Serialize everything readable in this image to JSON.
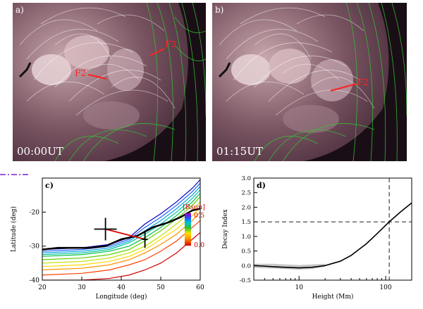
{
  "panel_a": {
    "letter": "a)",
    "time": "00:00UT",
    "filament_labels": [
      "F2",
      "F3"
    ]
  },
  "panel_b": {
    "letter": "b)",
    "time": "01:15UT",
    "filament_labels": [
      "F2"
    ]
  },
  "chart_data": [
    {
      "panel": "c)",
      "type": "line",
      "xlabel": "Longitude (deg)",
      "ylabel": "Latitude (deg)",
      "xlim": [
        20,
        60
      ],
      "ylim": [
        -40,
        -10
      ],
      "xticks": [
        20,
        30,
        40,
        50,
        60
      ],
      "yticks": [
        -40,
        -30,
        -20
      ],
      "colorbar": {
        "title": "[Rsun]",
        "max_label": "0.5",
        "min_label": "0.0"
      },
      "series": [
        {
          "color": "#d00000",
          "x": [
            20,
            30,
            37,
            42,
            46,
            50,
            54,
            58,
            60
          ],
          "y": [
            -40,
            -40,
            -39.5,
            -38.5,
            -37,
            -35,
            -32,
            -28,
            -26
          ]
        },
        {
          "color": "#ff4000",
          "x": [
            20,
            30,
            37,
            42,
            46,
            50,
            54,
            58,
            60
          ],
          "y": [
            -38.5,
            -38,
            -37,
            -35.5,
            -34,
            -31.5,
            -28.5,
            -24.5,
            -22.5
          ]
        },
        {
          "color": "#ff9000",
          "x": [
            20,
            30,
            37,
            42,
            46,
            50,
            54,
            58,
            60
          ],
          "y": [
            -37,
            -36.5,
            -35.5,
            -34,
            -32,
            -29.5,
            -26.5,
            -22.5,
            -20
          ]
        },
        {
          "color": "#ffd800",
          "x": [
            20,
            30,
            37,
            42,
            46,
            50,
            54,
            58,
            60
          ],
          "y": [
            -36,
            -35.5,
            -34.5,
            -33,
            -31,
            -28,
            -25,
            -21,
            -18.5
          ]
        },
        {
          "color": "#c0e000",
          "x": [
            20,
            30,
            37,
            42,
            46,
            50,
            54,
            58,
            60
          ],
          "y": [
            -35,
            -34.5,
            -33.5,
            -32,
            -30,
            -27,
            -23.5,
            -19.5,
            -17
          ]
        },
        {
          "color": "#60d000",
          "x": [
            20,
            30,
            37,
            42,
            46,
            50,
            54,
            58,
            60
          ],
          "y": [
            -34,
            -33.5,
            -32.5,
            -31,
            -28.5,
            -25.5,
            -22,
            -18,
            -15.5
          ]
        },
        {
          "color": "#00c040",
          "x": [
            20,
            30,
            37,
            42,
            46,
            50,
            54,
            58,
            60
          ],
          "y": [
            -33,
            -32.5,
            -31.5,
            -30,
            -27.5,
            -24.5,
            -21,
            -17,
            -14.5
          ]
        },
        {
          "color": "#00c0a0",
          "x": [
            20,
            30,
            37,
            42,
            46,
            50,
            54,
            58,
            60
          ],
          "y": [
            -32.5,
            -32,
            -31,
            -29,
            -26.5,
            -23.5,
            -20,
            -16,
            -13.5
          ]
        },
        {
          "color": "#00a0e0",
          "x": [
            20,
            30,
            37,
            42,
            46,
            50,
            54,
            58,
            60
          ],
          "y": [
            -32,
            -31.5,
            -30.5,
            -28.5,
            -25.5,
            -22.5,
            -19,
            -15,
            -12.5
          ]
        },
        {
          "color": "#2060ff",
          "x": [
            20,
            30,
            37,
            42,
            46,
            50,
            54,
            58,
            60
          ],
          "y": [
            -31.5,
            -31,
            -30,
            -28,
            -24.5,
            -21.5,
            -18,
            -14,
            -11.5
          ]
        },
        {
          "color": "#0000c0",
          "x": [
            20,
            30,
            37,
            42,
            46,
            50,
            54,
            58,
            60
          ],
          "y": [
            -31,
            -30.5,
            -29.5,
            -27.5,
            -23.5,
            -20.5,
            -17,
            -13,
            -10.5
          ]
        }
      ],
      "pil_black": {
        "x": [
          20,
          24,
          28,
          32,
          36,
          40,
          44,
          48,
          52,
          55,
          58,
          60
        ],
        "y": [
          -31,
          -30.5,
          -30.5,
          -30.5,
          -30,
          -28,
          -27,
          -24.5,
          -23,
          -21.5,
          -19.5,
          -19
        ]
      },
      "markers": [
        {
          "x": 36,
          "y": -25,
          "size": "large"
        },
        {
          "x": 46,
          "y": -28,
          "size": "small"
        }
      ],
      "red_segment": {
        "x": [
          36,
          46
        ],
        "y": [
          -25,
          -28
        ]
      }
    },
    {
      "panel": "d)",
      "type": "line",
      "xlabel": "Height (Mm)",
      "ylabel": "Decay Index",
      "xscale": "log",
      "xlim": [
        3,
        200
      ],
      "ylim": [
        -0.5,
        3.0
      ],
      "xticks": [
        10,
        100
      ],
      "yticks": [
        -0.5,
        0.0,
        0.5,
        1.0,
        1.5,
        2.0,
        2.5,
        3.0
      ],
      "hline": 1.5,
      "vline": 110,
      "series": [
        {
          "x": [
            3,
            4,
            5,
            7,
            10,
            14,
            20,
            30,
            40,
            60,
            80,
            110,
            150,
            200
          ],
          "y": [
            0.0,
            -0.02,
            -0.04,
            -0.06,
            -0.08,
            -0.06,
            0.0,
            0.15,
            0.35,
            0.75,
            1.1,
            1.5,
            1.85,
            2.15
          ]
        }
      ],
      "band": {
        "x": [
          3,
          5,
          7,
          10,
          14,
          20
        ],
        "lo": [
          -0.08,
          -0.1,
          -0.12,
          -0.14,
          -0.12,
          -0.04
        ],
        "hi": [
          0.06,
          0.06,
          0.04,
          0.02,
          0.04,
          0.06
        ]
      }
    }
  ]
}
